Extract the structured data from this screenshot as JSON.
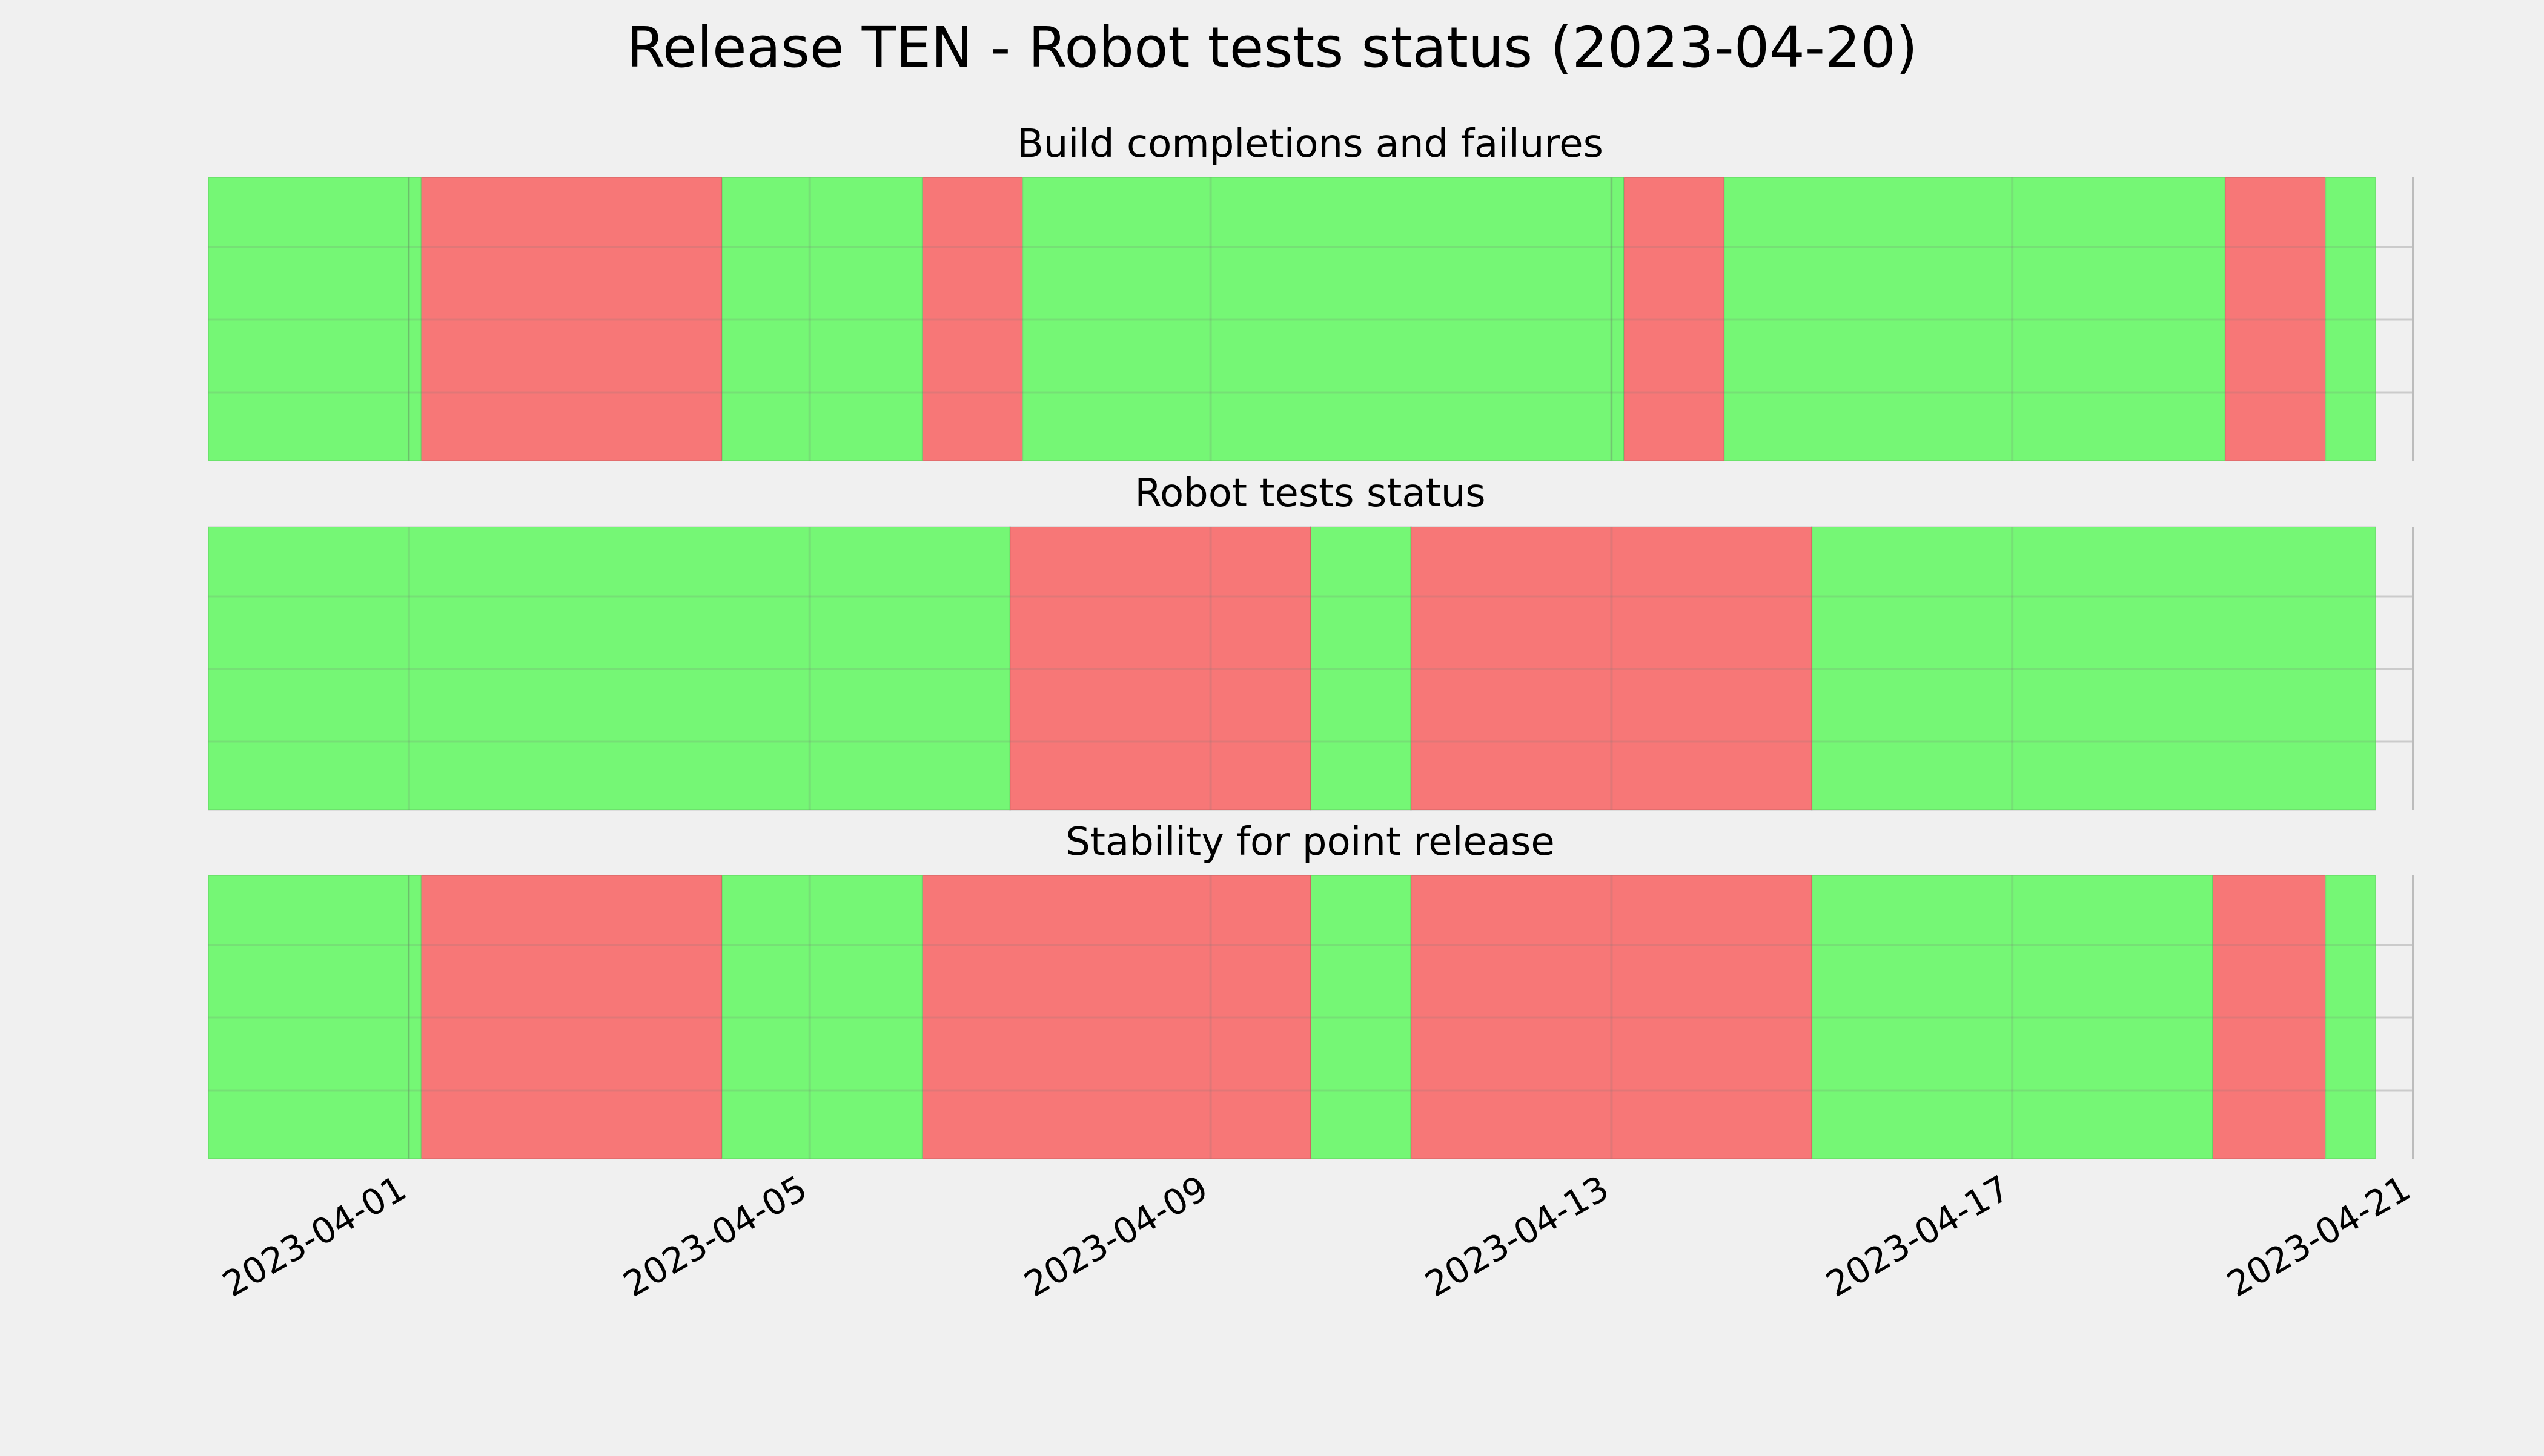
{
  "chart_data": {
    "title": "Release TEN - Robot tests status (2023-04-20)",
    "type": "status-timeline",
    "x_axis": {
      "type": "date",
      "range": [
        "2023-03-30",
        "2023-04-21"
      ],
      "ticks": [
        "2023-04-01",
        "2023-04-05",
        "2023-04-09",
        "2023-04-13",
        "2023-04-17",
        "2023-04-21"
      ]
    },
    "grid": true,
    "colors": {
      "pass": "#75f775",
      "fail": "#f77777",
      "background": "#f0f0f0",
      "grid": "#cbcbcb"
    },
    "panels": [
      {
        "title": "Build completions and failures",
        "segments": [
          {
            "start": "2023-03-30 00:00",
            "end": "2023-04-01 00:00",
            "status": "pass"
          },
          {
            "start": "2023-04-01 00:00",
            "end": "2023-04-01 03:00",
            "status": "pass"
          },
          {
            "start": "2023-04-01 03:00",
            "end": "2023-04-04 03:00",
            "status": "fail"
          },
          {
            "start": "2023-04-04 03:00",
            "end": "2023-04-06 03:00",
            "status": "pass"
          },
          {
            "start": "2023-04-06 03:00",
            "end": "2023-04-07 03:00",
            "status": "fail"
          },
          {
            "start": "2023-04-07 03:00",
            "end": "2023-04-13 00:00",
            "status": "pass"
          },
          {
            "start": "2023-04-13 00:00",
            "end": "2023-04-13 03:00",
            "status": "pass"
          },
          {
            "start": "2023-04-13 03:00",
            "end": "2023-04-14 03:00",
            "status": "fail"
          },
          {
            "start": "2023-04-14 03:00",
            "end": "2023-04-19 03:00",
            "status": "pass"
          },
          {
            "start": "2023-04-19 03:00",
            "end": "2023-04-20 03:00",
            "status": "fail"
          },
          {
            "start": "2023-04-20 03:00",
            "end": "2023-04-20 15:00",
            "status": "pass"
          }
        ]
      },
      {
        "title": "Robot tests status",
        "segments": [
          {
            "start": "2023-03-30 00:00",
            "end": "2023-04-07 00:00",
            "status": "pass"
          },
          {
            "start": "2023-04-07 00:00",
            "end": "2023-04-10 00:00",
            "status": "fail"
          },
          {
            "start": "2023-04-10 00:00",
            "end": "2023-04-11 00:00",
            "status": "pass"
          },
          {
            "start": "2023-04-11 00:00",
            "end": "2023-04-15 00:00",
            "status": "fail"
          },
          {
            "start": "2023-04-15 00:00",
            "end": "2023-04-20 15:00",
            "status": "pass"
          }
        ]
      },
      {
        "title": "Stability for point release",
        "segments": [
          {
            "start": "2023-03-30 00:00",
            "end": "2023-04-01 00:00",
            "status": "pass"
          },
          {
            "start": "2023-04-01 00:00",
            "end": "2023-04-01 03:00",
            "status": "pass"
          },
          {
            "start": "2023-04-01 03:00",
            "end": "2023-04-04 03:00",
            "status": "fail"
          },
          {
            "start": "2023-04-04 03:00",
            "end": "2023-04-06 03:00",
            "status": "pass"
          },
          {
            "start": "2023-04-06 03:00",
            "end": "2023-04-10 00:00",
            "status": "fail"
          },
          {
            "start": "2023-04-10 00:00",
            "end": "2023-04-11 00:00",
            "status": "pass"
          },
          {
            "start": "2023-04-11 00:00",
            "end": "2023-04-15 00:00",
            "status": "fail"
          },
          {
            "start": "2023-04-15 00:00",
            "end": "2023-04-19 00:00",
            "status": "pass"
          },
          {
            "start": "2023-04-19 00:00",
            "end": "2023-04-20 03:00",
            "status": "fail"
          },
          {
            "start": "2023-04-20 03:00",
            "end": "2023-04-20 15:00",
            "status": "pass"
          }
        ]
      }
    ]
  }
}
